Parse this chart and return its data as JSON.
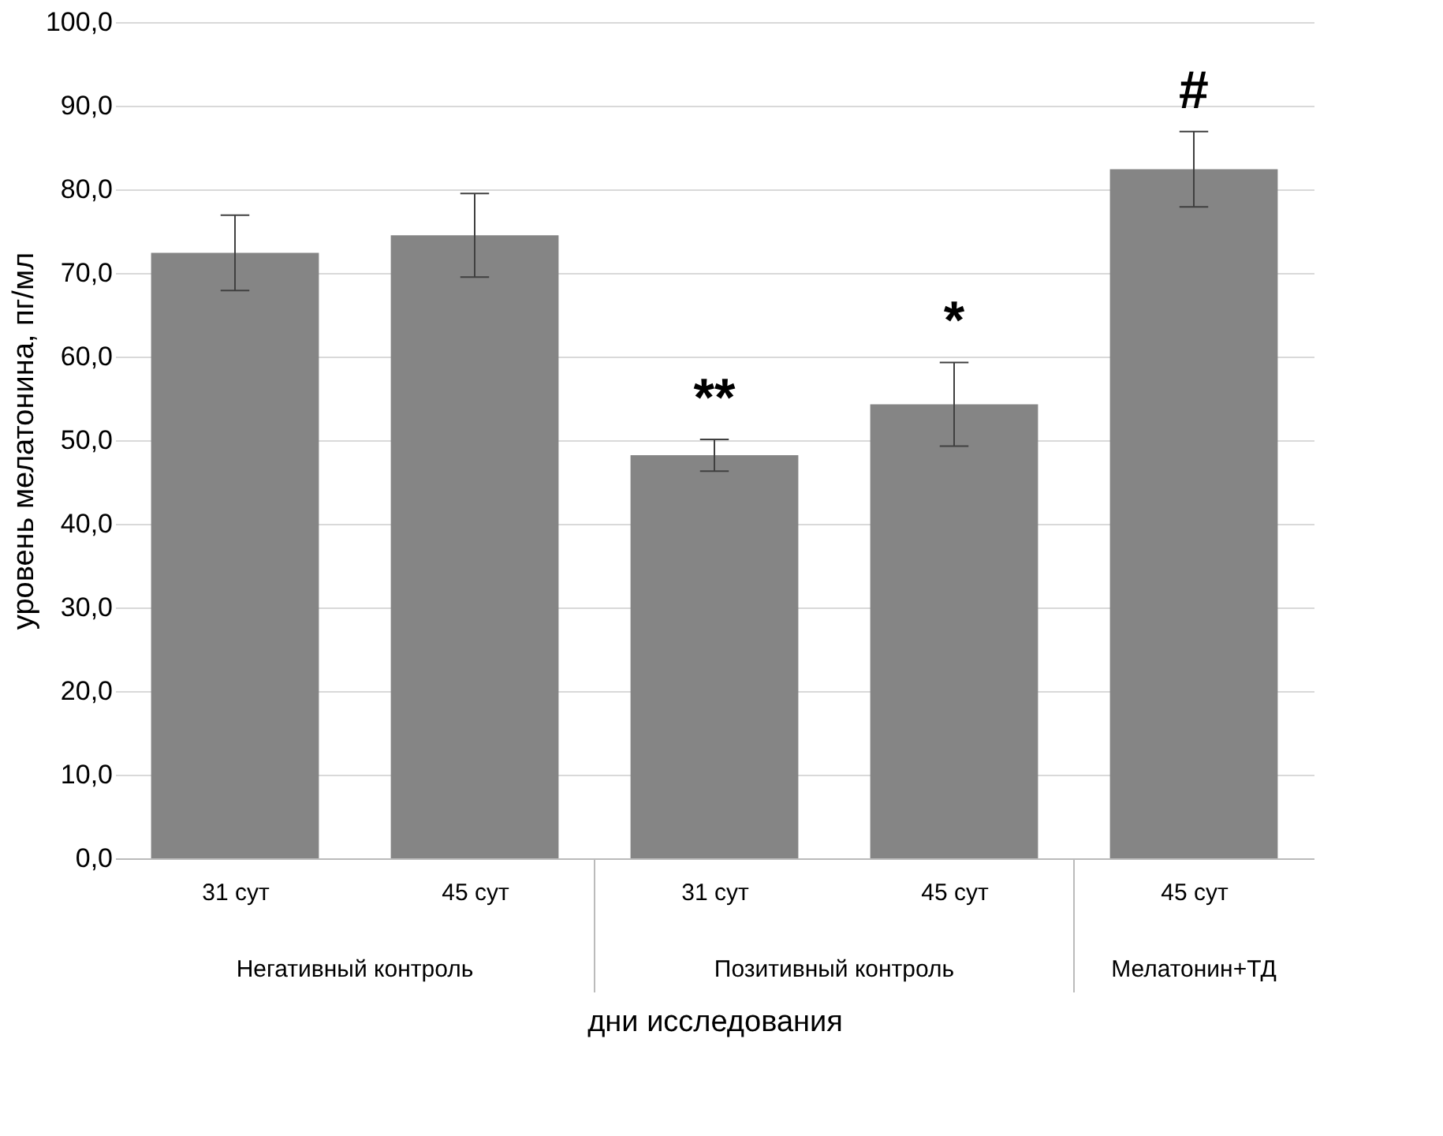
{
  "chart_data": {
    "type": "bar",
    "categories": [
      "31 сут",
      "45 сут",
      "31 сут",
      "45 сут",
      "45 сут"
    ],
    "values": [
      72.4,
      74.5,
      48.2,
      54.3,
      82.4
    ],
    "errors": [
      4.5,
      5.0,
      1.9,
      5.0,
      4.5
    ],
    "color": "#858585",
    "xlabel": "дни исследования",
    "ylabel": "уровень мелатонина, пг/мл",
    "ylim": [
      0,
      100
    ],
    "yticks": [
      {
        "value": 0,
        "label": "0,0"
      },
      {
        "value": 10,
        "label": "10,0"
      },
      {
        "value": 20,
        "label": "20,0"
      },
      {
        "value": 30,
        "label": "30,0"
      },
      {
        "value": 40,
        "label": "40,0"
      },
      {
        "value": 50,
        "label": "50,0"
      },
      {
        "value": 60,
        "label": "60,0"
      },
      {
        "value": 70,
        "label": "70,0"
      },
      {
        "value": 80,
        "label": "80,0"
      },
      {
        "value": 90,
        "label": "90,0"
      },
      {
        "value": 100,
        "label": "100,0"
      }
    ],
    "grid": "y",
    "value_labels": [
      null,
      null,
      "**",
      "*",
      "#"
    ],
    "annotations": [
      "Негативный контроль",
      "Позитивный контроль",
      "Мелатонин+ТД"
    ]
  }
}
